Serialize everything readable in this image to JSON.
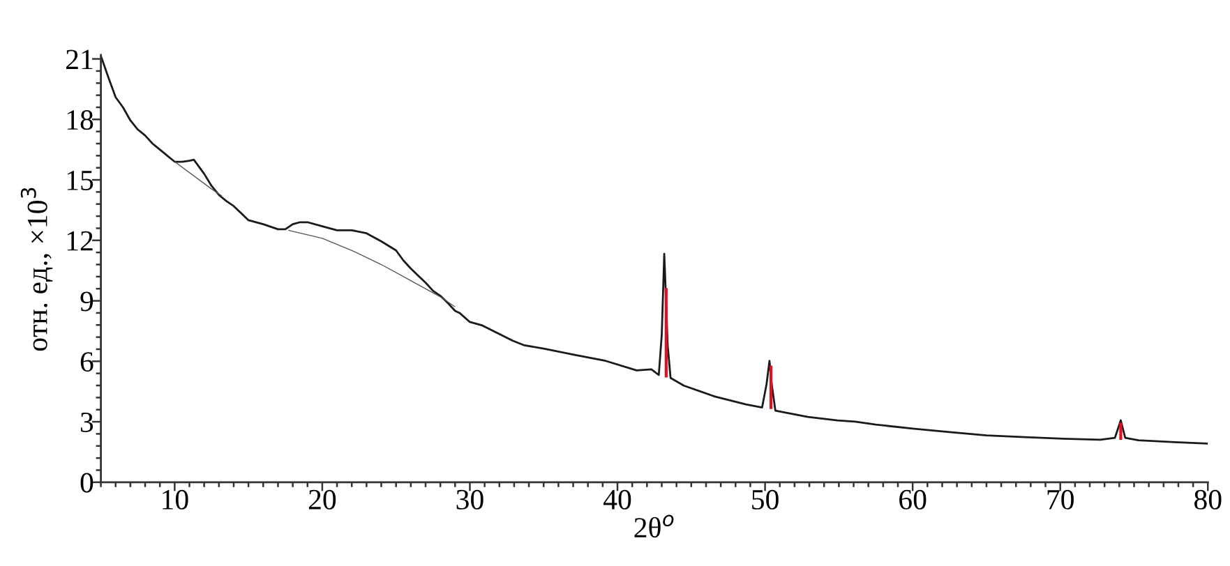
{
  "chart_data": {
    "type": "line",
    "xlabel": "2θ$^{o}$",
    "ylabel": "отн. ед., ×10$^{3}$",
    "xlim": [
      5,
      80
    ],
    "ylim": [
      0,
      21.2
    ],
    "xticks": [
      {
        "value": 5,
        "label": null
      },
      {
        "value": 6,
        "label": null
      },
      {
        "value": 7,
        "label": null
      },
      {
        "value": 8,
        "label": null
      },
      {
        "value": 9,
        "label": null
      },
      10,
      {
        "value": 11,
        "label": null
      },
      {
        "value": 12,
        "label": null
      },
      {
        "value": 13,
        "label": null
      },
      {
        "value": 14,
        "label": null
      },
      {
        "value": 15,
        "label": null
      },
      {
        "value": 16,
        "label": null
      },
      {
        "value": 17,
        "label": null
      },
      {
        "value": 18,
        "label": null
      },
      {
        "value": 19,
        "label": null
      },
      20,
      {
        "value": 21,
        "label": null
      },
      {
        "value": 22,
        "label": null
      },
      {
        "value": 23,
        "label": null
      },
      {
        "value": 24,
        "label": null
      },
      {
        "value": 25,
        "label": null
      },
      {
        "value": 26,
        "label": null
      },
      {
        "value": 27,
        "label": null
      },
      {
        "value": 28,
        "label": null
      },
      {
        "value": 29,
        "label": null
      },
      30,
      {
        "value": 31,
        "label": null
      },
      {
        "value": 32,
        "label": null
      },
      {
        "value": 33,
        "label": null
      },
      {
        "value": 34,
        "label": null
      },
      {
        "value": 35,
        "label": null
      },
      {
        "value": 36,
        "label": null
      },
      {
        "value": 37,
        "label": null
      },
      {
        "value": 38,
        "label": null
      },
      {
        "value": 39,
        "label": null
      },
      40,
      {
        "value": 41,
        "label": null
      },
      {
        "value": 42,
        "label": null
      },
      {
        "value": 43,
        "label": null
      },
      {
        "value": 44,
        "label": null
      },
      {
        "value": 45,
        "label": null
      },
      {
        "value": 46,
        "label": null
      },
      {
        "value": 47,
        "label": null
      },
      {
        "value": 48,
        "label": null
      },
      {
        "value": 49,
        "label": null
      },
      50,
      {
        "value": 51,
        "label": null
      },
      {
        "value": 52,
        "label": null
      },
      {
        "value": 53,
        "label": null
      },
      {
        "value": 54,
        "label": null
      },
      {
        "value": 55,
        "label": null
      },
      {
        "value": 56,
        "label": null
      },
      {
        "value": 57,
        "label": null
      },
      {
        "value": 58,
        "label": null
      },
      {
        "value": 59,
        "label": null
      },
      60,
      {
        "value": 61,
        "label": null
      },
      {
        "value": 62,
        "label": null
      },
      {
        "value": 63,
        "label": null
      },
      {
        "value": 64,
        "label": null
      },
      {
        "value": 65,
        "label": null
      },
      {
        "value": 66,
        "label": null
      },
      {
        "value": 67,
        "label": null
      },
      {
        "value": 68,
        "label": null
      },
      {
        "value": 69,
        "label": null
      },
      70,
      {
        "value": 71,
        "label": null
      },
      {
        "value": 72,
        "label": null
      },
      {
        "value": 73,
        "label": null
      },
      {
        "value": 74,
        "label": null
      },
      {
        "value": 75,
        "label": null
      },
      {
        "value": 76,
        "label": null
      },
      {
        "value": 77,
        "label": null
      },
      {
        "value": 78,
        "label": null
      },
      {
        "value": 79,
        "label": null
      },
      80
    ],
    "yticks": [
      0,
      {
        "value": 0.6,
        "label": null
      },
      {
        "value": 1.2,
        "label": null
      },
      {
        "value": 1.8,
        "label": null
      },
      {
        "value": 2.4,
        "label": null
      },
      3,
      {
        "value": 3.6,
        "label": null
      },
      {
        "value": 4.2,
        "label": null
      },
      {
        "value": 4.8,
        "label": null
      },
      {
        "value": 5.4,
        "label": null
      },
      6,
      {
        "value": 6.6,
        "label": null
      },
      {
        "value": 7.2,
        "label": null
      },
      {
        "value": 7.8,
        "label": null
      },
      {
        "value": 8.4,
        "label": null
      },
      9,
      {
        "value": 9.6,
        "label": null
      },
      {
        "value": 10.2,
        "label": null
      },
      {
        "value": 10.8,
        "label": null
      },
      {
        "value": 11.4,
        "label": null
      },
      12,
      {
        "value": 12.6,
        "label": null
      },
      {
        "value": 13.2,
        "label": null
      },
      {
        "value": 13.8,
        "label": null
      },
      {
        "value": 14.4,
        "label": null
      },
      15,
      {
        "value": 15.6,
        "label": null
      },
      {
        "value": 16.2,
        "label": null
      },
      {
        "value": 16.8,
        "label": null
      },
      {
        "value": 17.4,
        "label": null
      },
      18,
      {
        "value": 18.6,
        "label": null
      },
      {
        "value": 19.2,
        "label": null
      },
      {
        "value": 19.8,
        "label": null
      },
      {
        "value": 20.4,
        "label": null
      },
      21
    ],
    "grid": false,
    "legend": false,
    "line_style": "solid",
    "marker": "none",
    "series": [
      {
        "color": "#1a1a1a",
        "x": [
          5,
          5.5,
          6,
          6.5,
          7,
          7.5,
          8,
          8.5,
          9,
          9.5,
          10,
          10.5,
          11,
          11.3,
          12,
          12.5,
          13,
          13.5,
          14,
          14.5,
          15,
          16,
          17,
          17.5,
          18,
          18.5,
          19,
          20,
          21,
          22,
          23,
          24,
          25,
          25.5,
          26,
          26.5,
          27,
          27.5,
          28,
          28.5,
          29,
          29.3,
          30,
          30.8,
          32.9,
          33.7,
          35,
          37.1,
          39.2,
          41.3,
          42.3,
          42.8,
          43.0,
          43.17,
          43.3,
          43.4,
          43.6,
          44.5,
          46.6,
          48.7,
          49.8,
          50.1,
          50.3,
          50.45,
          50.7,
          52.9,
          54.9,
          56.1,
          57.5,
          60,
          62.5,
          65,
          67.6,
          70.2,
          72.7,
          73.7,
          74.1,
          74.4,
          75.3,
          77.8,
          80
        ],
        "values": [
          21.15,
          20.1,
          19.1,
          18.6,
          17.95,
          17.5,
          17.2,
          16.8,
          16.5,
          16.2,
          15.9,
          15.9,
          15.95,
          16.0,
          15.3,
          14.7,
          14.25,
          13.95,
          13.7,
          13.35,
          13.0,
          12.8,
          12.55,
          12.55,
          12.8,
          12.9,
          12.9,
          12.7,
          12.5,
          12.5,
          12.35,
          11.95,
          11.5,
          11.0,
          10.6,
          10.25,
          9.9,
          9.5,
          9.25,
          8.9,
          8.5,
          8.4,
          7.95,
          7.79,
          7.02,
          6.79,
          6.63,
          6.32,
          6.02,
          5.55,
          5.6,
          5.32,
          7.3,
          11.33,
          8.87,
          6.8,
          5.17,
          4.79,
          4.25,
          3.86,
          3.71,
          4.86,
          6.02,
          4.86,
          3.55,
          3.24,
          3.07,
          3.01,
          2.86,
          2.66,
          2.49,
          2.32,
          2.24,
          2.16,
          2.11,
          2.2,
          3.07,
          2.2,
          2.08,
          1.99,
          1.92
        ]
      },
      {
        "color": "#555555",
        "x": [
          10,
          12.5,
          13.2,
          15,
          17.7,
          20,
          22,
          24,
          26,
          28,
          29
        ],
        "values": [
          15.9,
          14.55,
          14.2,
          null,
          12.5,
          12.1,
          11.5,
          10.8,
          10.0,
          9.2,
          8.7
        ]
      },
      {
        "color": "#e0101e",
        "x": [
          43.3,
          43.3
        ],
        "values": [
          5.2,
          9.63
        ]
      },
      {
        "color": "#e0101e",
        "x": [
          50.4,
          50.4
        ],
        "values": [
          3.63,
          5.79
        ]
      },
      {
        "color": "#e0101e",
        "x": [
          74.1,
          74.1
        ],
        "values": [
          2.1,
          2.95
        ]
      }
    ]
  }
}
